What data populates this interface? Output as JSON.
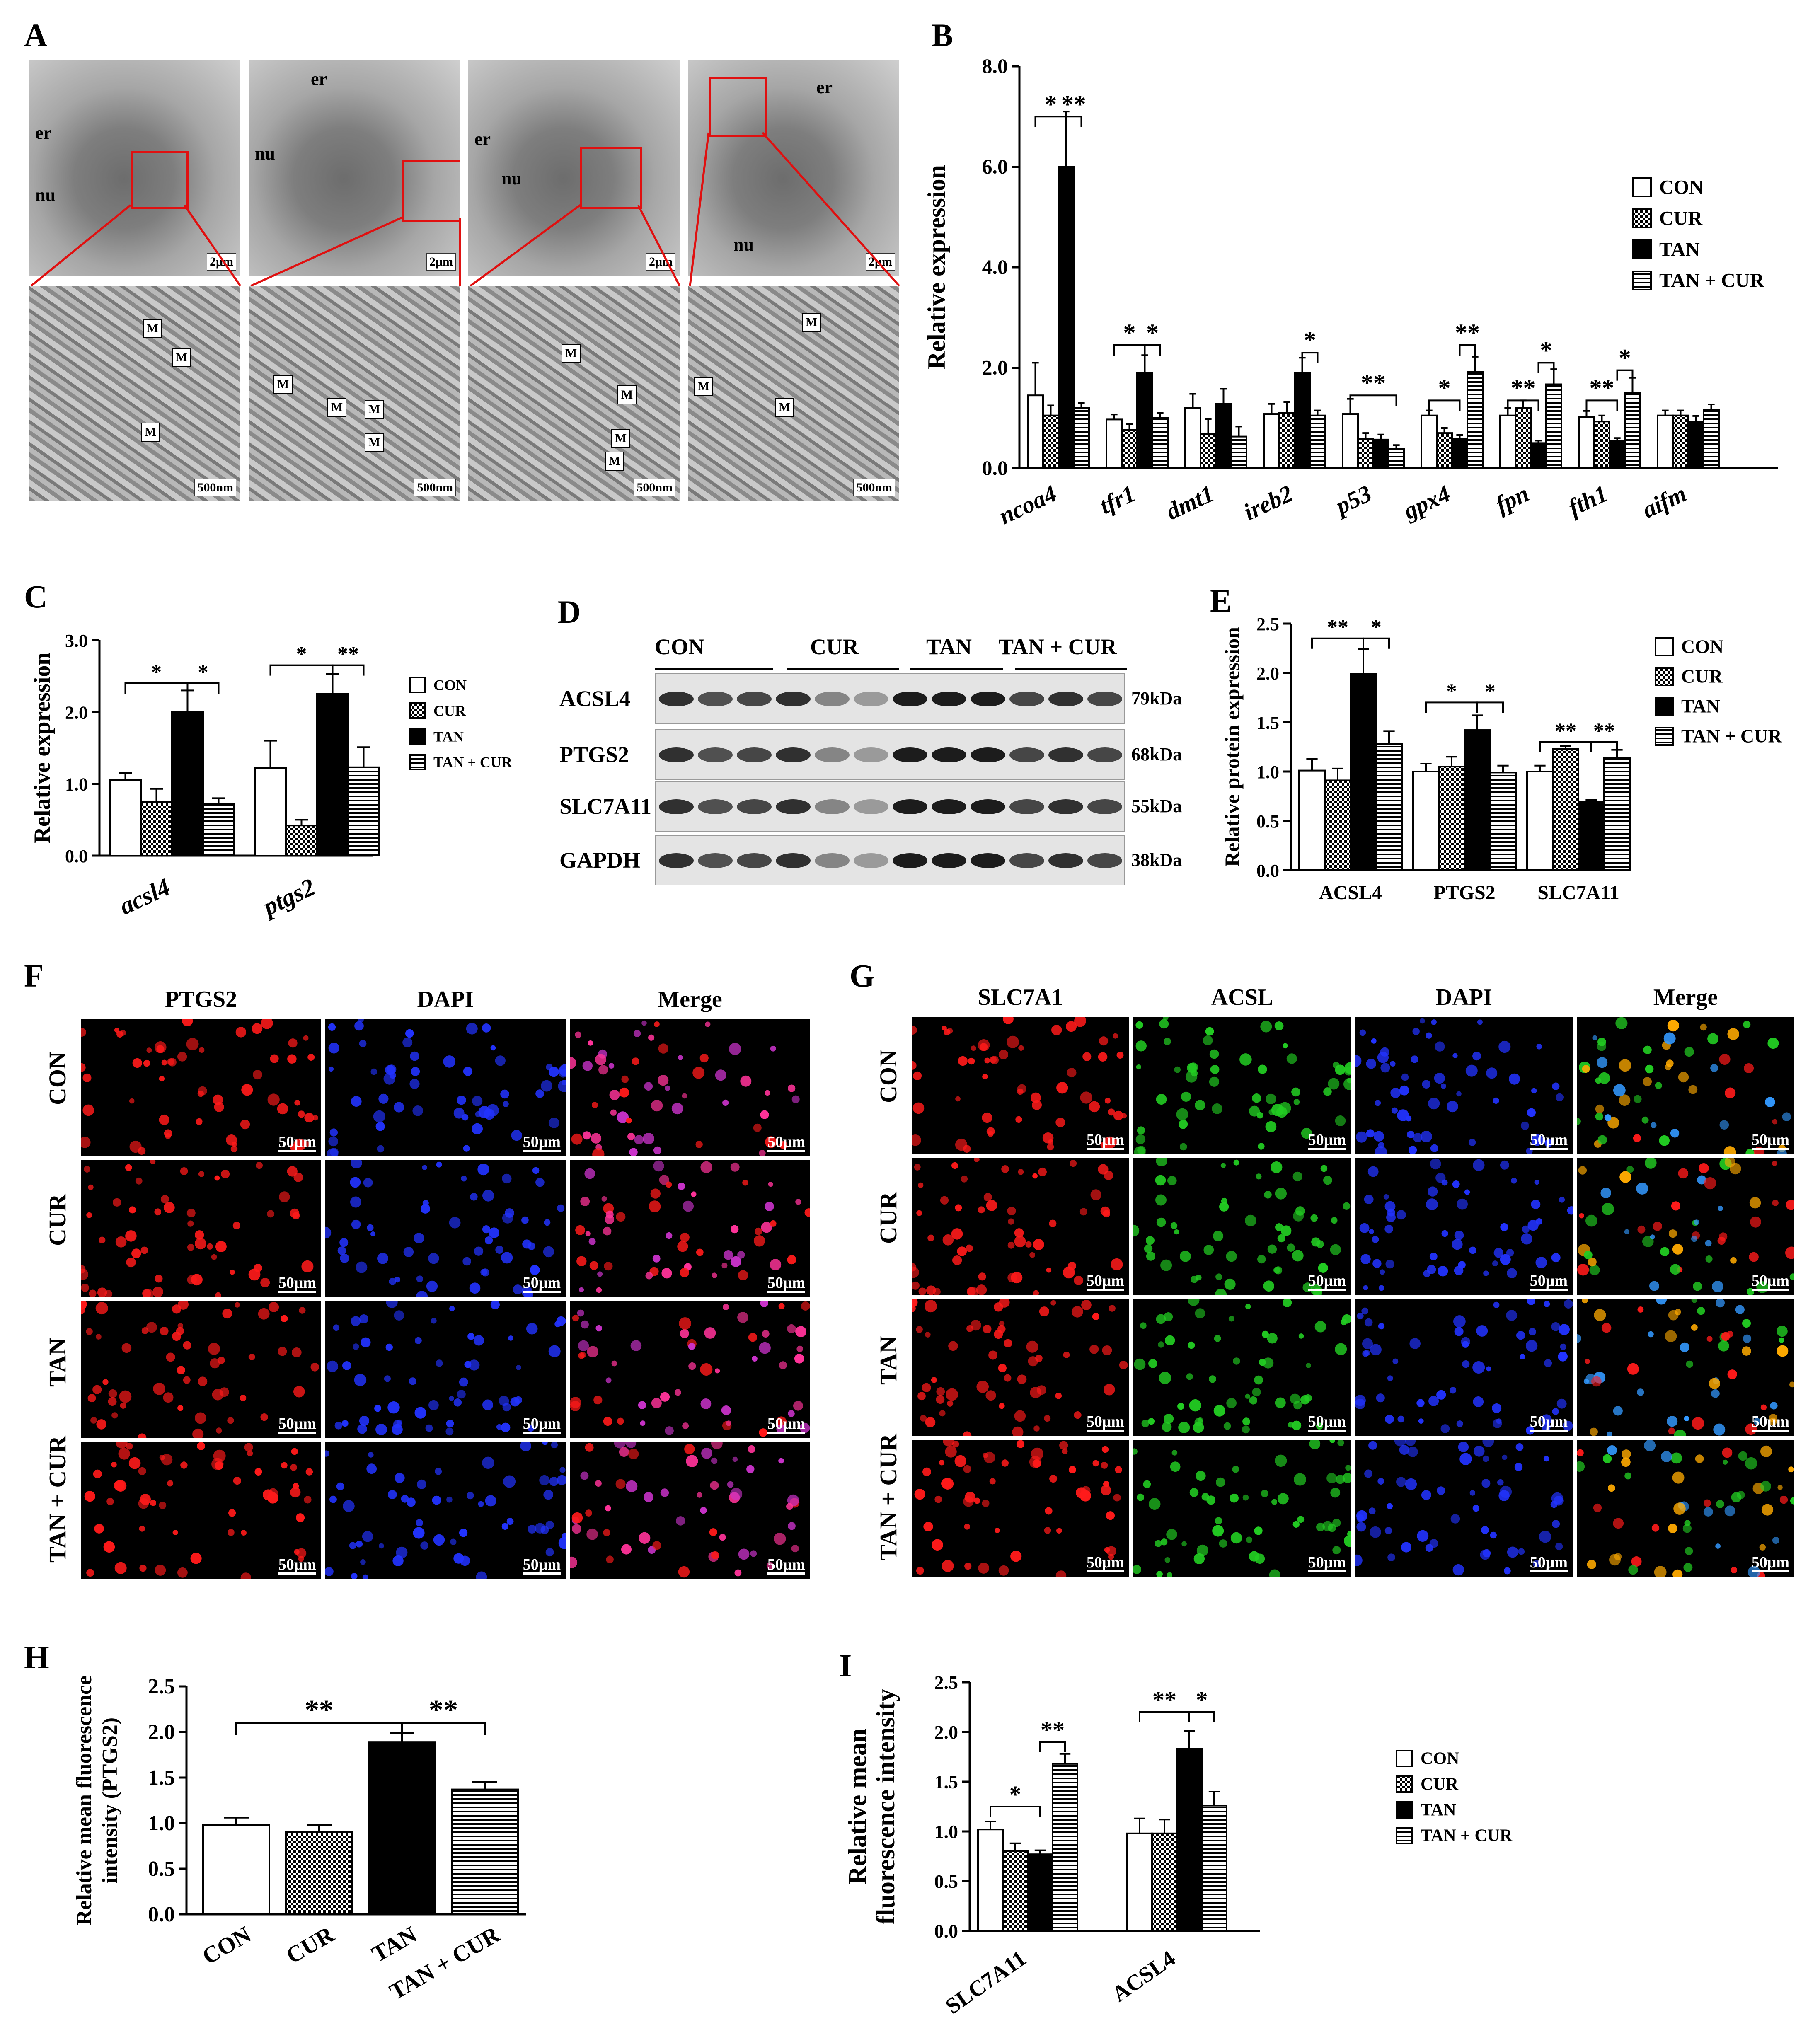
{
  "panel_letters": [
    "A",
    "B",
    "C",
    "D",
    "E",
    "F",
    "G",
    "H",
    "I"
  ],
  "groups": [
    "CON",
    "CUR",
    "TAN",
    "TAN + CUR"
  ],
  "panelA": {
    "labels": {
      "er": "er",
      "nu": "nu",
      "M": "M"
    },
    "scale_top": "2μm",
    "scale_bottom": "500nm"
  },
  "panelD": {
    "group_labels": [
      "CON",
      "CUR",
      "TAN",
      "TAN + CUR"
    ],
    "rows": [
      {
        "protein": "ACSL4",
        "kda": "79kDa"
      },
      {
        "protein": "PTGS2",
        "kda": "68kDa"
      },
      {
        "protein": "SLC7A11",
        "kda": "55kDa"
      },
      {
        "protein": "GAPDH",
        "kda": "38kDa"
      }
    ]
  },
  "panelF": {
    "columns": [
      "PTGS2",
      "DAPI",
      "Merge"
    ],
    "rows": [
      "CON",
      "CUR",
      "TAN",
      "TAN + CUR"
    ],
    "scale": "50μm"
  },
  "panelG": {
    "columns": [
      "SLC7A1",
      "ACSL",
      "DAPI",
      "Merge"
    ],
    "rows": [
      "CON",
      "CUR",
      "TAN",
      "TAN + CUR"
    ],
    "scale": "50μm"
  },
  "colors": {
    "CON": "#ffffff",
    "CUR": "checker",
    "TAN": "#000000",
    "TAN + CUR": "hstripe",
    "red_channel": "#ff1a1a",
    "green_channel": "#22cc22",
    "blue_channel": "#2233ff",
    "zoom_box": "#e01010"
  },
  "chart_data": [
    {
      "panel": "B",
      "type": "bar",
      "ylabel": "Relative  expression",
      "categories": [
        "ncoa4",
        "tfr1",
        "dmt1",
        "ireb2",
        "p53",
        "gpx4",
        "fpn",
        "fth1",
        "aifm"
      ],
      "ylim": [
        0,
        8
      ],
      "yticks": [
        "0.0",
        "2.0",
        "4.0",
        "6.0",
        "8.0"
      ],
      "series": [
        {
          "name": "CON",
          "values": [
            1.45,
            0.97,
            1.2,
            1.08,
            1.08,
            1.05,
            1.05,
            1.02,
            1.05
          ],
          "errors": [
            0.65,
            0.1,
            0.28,
            0.2,
            0.3,
            0.1,
            0.15,
            0.12,
            0.1
          ]
        },
        {
          "name": "CUR",
          "values": [
            1.05,
            0.76,
            0.68,
            1.1,
            0.58,
            0.7,
            1.2,
            0.93,
            1.05
          ],
          "errors": [
            0.2,
            0.12,
            0.3,
            0.22,
            0.12,
            0.1,
            0.15,
            0.12,
            0.1
          ]
        },
        {
          "name": "TAN",
          "values": [
            6.0,
            1.9,
            1.28,
            1.9,
            0.57,
            0.58,
            0.5,
            0.55,
            0.92
          ],
          "errors": [
            1.1,
            0.35,
            0.3,
            0.3,
            0.1,
            0.08,
            0.05,
            0.05,
            0.12
          ]
        },
        {
          "name": "TAN + CUR",
          "values": [
            1.2,
            1.0,
            0.63,
            1.05,
            0.38,
            1.92,
            1.67,
            1.5,
            1.17
          ],
          "errors": [
            0.1,
            0.1,
            0.2,
            0.1,
            0.08,
            0.3,
            0.3,
            0.3,
            0.1
          ]
        }
      ],
      "annotations": [
        "* **",
        "* *",
        "*",
        "**",
        "* **",
        "** *",
        "** *"
      ],
      "legend": "right"
    },
    {
      "panel": "C",
      "type": "bar",
      "ylabel": "Relative  expression",
      "categories": [
        "acsl4",
        "ptgs2"
      ],
      "ylim": [
        0,
        3
      ],
      "yticks": [
        "0.0",
        "1.0",
        "2.0",
        "3.0"
      ],
      "series": [
        {
          "name": "CON",
          "values": [
            1.05,
            1.22
          ],
          "errors": [
            0.1,
            0.38
          ]
        },
        {
          "name": "CUR",
          "values": [
            0.75,
            0.42
          ],
          "errors": [
            0.18,
            0.08
          ]
        },
        {
          "name": "TAN",
          "values": [
            2.0,
            2.25
          ],
          "errors": [
            0.3,
            0.28
          ]
        },
        {
          "name": "TAN + CUR",
          "values": [
            0.72,
            1.23
          ],
          "errors": [
            0.08,
            0.28
          ]
        }
      ],
      "annotations": [
        "*",
        "*",
        "*",
        "**"
      ],
      "legend": "right"
    },
    {
      "panel": "E",
      "type": "bar",
      "ylabel": "Relative protein expression",
      "categories": [
        "ACSL4",
        "PTGS2",
        "SLC7A11"
      ],
      "ylim": [
        0,
        2.5
      ],
      "yticks": [
        "0.0",
        "0.5",
        "1.0",
        "1.5",
        "2.0",
        "2.5"
      ],
      "series": [
        {
          "name": "CON",
          "values": [
            1.01,
            1.0,
            1.0
          ],
          "errors": [
            0.12,
            0.08,
            0.06
          ]
        },
        {
          "name": "CUR",
          "values": [
            0.91,
            1.05,
            1.23
          ],
          "errors": [
            0.12,
            0.1,
            0.03
          ]
        },
        {
          "name": "TAN",
          "values": [
            1.99,
            1.42,
            0.69
          ],
          "errors": [
            0.25,
            0.15,
            0.02
          ]
        },
        {
          "name": "TAN + CUR",
          "values": [
            1.28,
            0.99,
            1.14
          ],
          "errors": [
            0.13,
            0.07,
            0.08
          ]
        }
      ],
      "annotations": [
        "**",
        "*",
        "*",
        "*",
        "**",
        "**"
      ],
      "legend": "right"
    },
    {
      "panel": "H",
      "type": "bar",
      "ylabel": "Relative mean fluorescence intensity (PTGS2)",
      "categories": [
        "CON",
        "CUR",
        "TAN",
        "TAN + CUR"
      ],
      "ylim": [
        0,
        2.5
      ],
      "yticks": [
        "0.0",
        "0.5",
        "1.0",
        "1.5",
        "2.0",
        "2.5"
      ],
      "series": [
        {
          "name": "",
          "values": [
            0.98,
            0.9,
            1.89,
            1.37
          ],
          "errors": [
            0.08,
            0.08,
            0.1,
            0.08
          ]
        }
      ],
      "annotations": [
        "**",
        "**"
      ]
    },
    {
      "panel": "I",
      "type": "bar",
      "ylabel": "Relative mean fluorescence intensity",
      "categories": [
        "SLC7A11",
        "ACSL4"
      ],
      "ylim": [
        0,
        2.5
      ],
      "yticks": [
        "0.0",
        "0.5",
        "1.0",
        "1.5",
        "2.0",
        "2.5"
      ],
      "series": [
        {
          "name": "CON",
          "values": [
            1.02,
            0.98
          ],
          "errors": [
            0.08,
            0.15
          ]
        },
        {
          "name": "CUR",
          "values": [
            0.8,
            0.98
          ],
          "errors": [
            0.08,
            0.14
          ]
        },
        {
          "name": "TAN",
          "values": [
            0.77,
            1.83
          ],
          "errors": [
            0.04,
            0.18
          ]
        },
        {
          "name": "TAN + CUR",
          "values": [
            1.68,
            1.26
          ],
          "errors": [
            0.1,
            0.14
          ]
        }
      ],
      "annotations": [
        "*",
        "**",
        "**",
        "*"
      ],
      "legend": "right"
    }
  ]
}
